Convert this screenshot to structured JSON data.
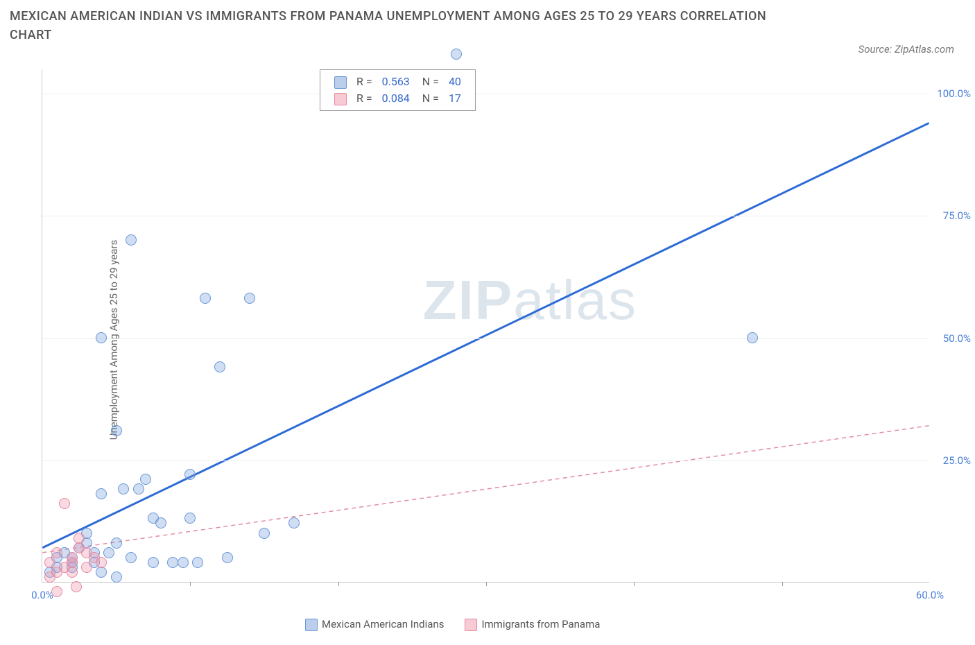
{
  "title": "MEXICAN AMERICAN INDIAN VS IMMIGRANTS FROM PANAMA UNEMPLOYMENT AMONG AGES 25 TO 29 YEARS CORRELATION CHART",
  "source": "Source: ZipAtlas.com",
  "ylabel": "Unemployment Among Ages 25 to 29 years",
  "watermark_bold": "ZIP",
  "watermark_rest": "atlas",
  "chart": {
    "type": "scatter",
    "xlim": [
      0,
      60
    ],
    "ylim": [
      0,
      105
    ],
    "xtick_labels": [
      "0.0%",
      "60.0%"
    ],
    "xtick_positions": [
      0,
      60
    ],
    "xtick_minors": [
      10,
      20,
      30,
      40,
      50
    ],
    "ytick_labels": [
      "25.0%",
      "50.0%",
      "75.0%",
      "100.0%"
    ],
    "ytick_positions": [
      25,
      50,
      75,
      100
    ],
    "background_color": "#ffffff",
    "grid_color": "#eeeeee",
    "axis_color": "#cccccc"
  },
  "series": [
    {
      "name": "Mexican American Indians",
      "key": "blue",
      "color_fill": "rgba(120,160,220,0.35)",
      "color_stroke": "#6a96d6",
      "r_label": "R =",
      "r_value": "0.563",
      "n_label": "N =",
      "n_value": "40",
      "trend": {
        "x1": 0,
        "y1": 7,
        "x2": 60,
        "y2": 94,
        "color": "#2e6bd6",
        "width": 3,
        "dash": "none"
      },
      "points": [
        [
          0.5,
          2
        ],
        [
          1,
          3
        ],
        [
          1,
          5
        ],
        [
          1.5,
          6
        ],
        [
          2,
          3
        ],
        [
          2,
          4
        ],
        [
          2,
          5
        ],
        [
          2.5,
          7
        ],
        [
          3,
          8
        ],
        [
          3,
          10
        ],
        [
          3.5,
          6
        ],
        [
          3.5,
          4
        ],
        [
          4,
          2
        ],
        [
          4,
          18
        ],
        [
          4,
          50
        ],
        [
          4.5,
          6
        ],
        [
          5,
          8
        ],
        [
          5,
          31
        ],
        [
          5,
          1
        ],
        [
          5.5,
          19
        ],
        [
          6,
          70
        ],
        [
          6,
          5
        ],
        [
          6.5,
          19
        ],
        [
          7,
          21
        ],
        [
          7.5,
          4
        ],
        [
          7.5,
          13
        ],
        [
          8,
          12
        ],
        [
          8.8,
          4
        ],
        [
          9.5,
          4
        ],
        [
          10,
          13
        ],
        [
          10,
          22
        ],
        [
          10.5,
          4
        ],
        [
          11,
          58
        ],
        [
          12,
          44
        ],
        [
          12.5,
          5
        ],
        [
          14,
          58
        ],
        [
          15,
          10
        ],
        [
          17,
          12
        ],
        [
          28,
          108
        ],
        [
          48,
          50
        ]
      ]
    },
    {
      "name": "Immigrants from Panama",
      "key": "pink",
      "color_fill": "rgba(240,150,170,0.35)",
      "color_stroke": "#e48aa3",
      "r_label": "R =",
      "r_value": "0.084",
      "n_label": "N =",
      "n_value": "17",
      "trend": {
        "x1": 0,
        "y1": 6,
        "x2": 60,
        "y2": 32,
        "color": "#e48aa3",
        "width": 1.5,
        "dash": "6,5"
      },
      "points": [
        [
          0.5,
          1
        ],
        [
          0.5,
          4
        ],
        [
          1,
          2
        ],
        [
          1,
          6
        ],
        [
          1,
          -2
        ],
        [
          1.5,
          3
        ],
        [
          1.5,
          16
        ],
        [
          2,
          2
        ],
        [
          2,
          4
        ],
        [
          2,
          5
        ],
        [
          2.3,
          -1
        ],
        [
          2.5,
          7
        ],
        [
          2.5,
          9
        ],
        [
          3,
          3
        ],
        [
          3,
          6
        ],
        [
          3.5,
          5
        ],
        [
          4,
          4
        ]
      ]
    }
  ],
  "legend_bottom": [
    {
      "key": "blue",
      "label": "Mexican American Indians"
    },
    {
      "key": "pink",
      "label": "Immigrants from Panama"
    }
  ]
}
